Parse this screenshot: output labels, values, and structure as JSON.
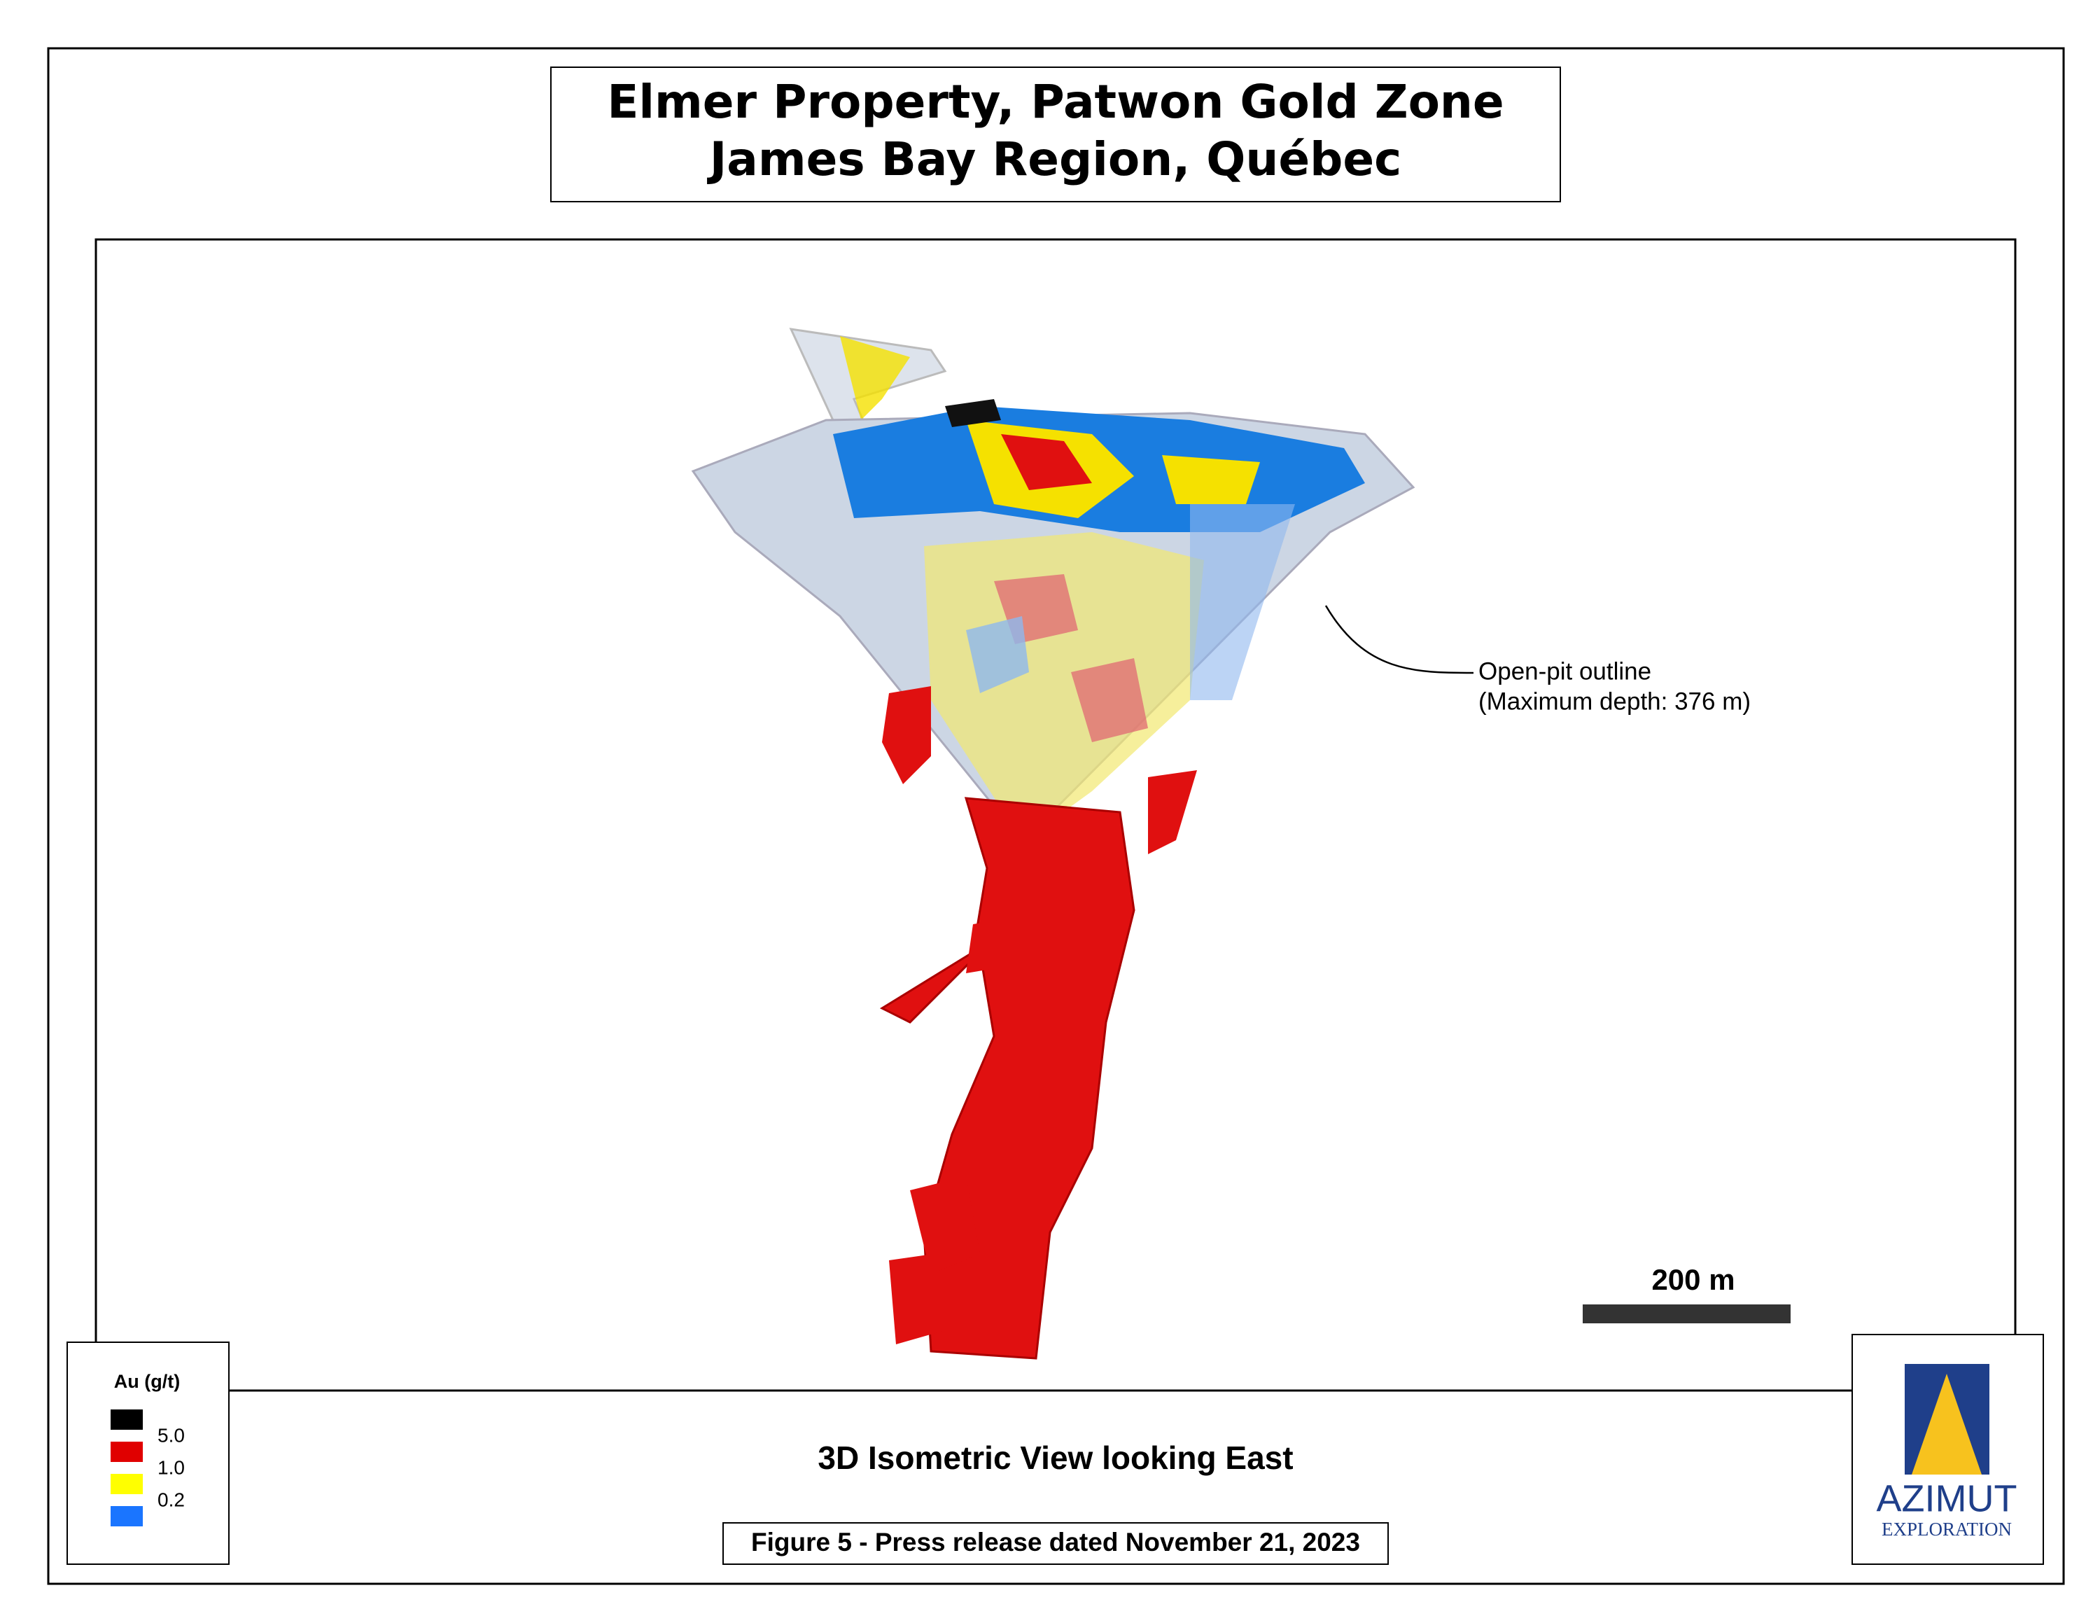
{
  "title": {
    "line1": "Elmer Property, Patwon Gold Zone",
    "line2": "James Bay Region, Québec"
  },
  "annotation": {
    "line1": "Open-pit outline",
    "line2": "(Maximum depth: 376 m)"
  },
  "legend": {
    "title": "Au (g/t)",
    "labels": [
      "5.0",
      "1.0",
      "0.2"
    ]
  },
  "scale_bar": {
    "label": "200 m"
  },
  "view_label": "3D Isometric View looking East",
  "caption": "Figure 5 - Press release dated November 21, 2023",
  "logo": {
    "name": "AZIMUT",
    "tagline": "EXPLORATION"
  }
}
